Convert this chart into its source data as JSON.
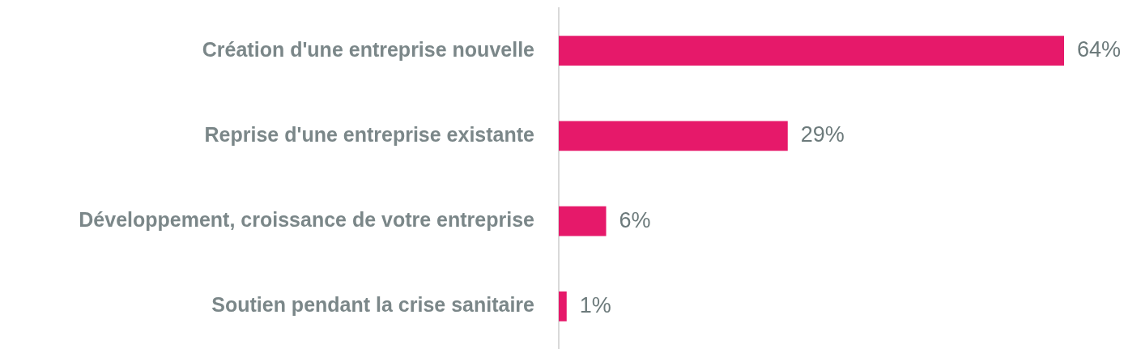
{
  "chart_data": {
    "type": "bar",
    "orientation": "horizontal",
    "categories": [
      "Création d'une entreprise nouvelle",
      "Reprise d'une entreprise existante",
      "Développement, croissance de votre entreprise",
      "Soutien pendant la crise sanitaire"
    ],
    "values": [
      64,
      29,
      6,
      1
    ],
    "color": "#e6196a",
    "value_labels": [
      "64%",
      "29%",
      "6%",
      "1%"
    ],
    "tick_labels": "y"
  }
}
